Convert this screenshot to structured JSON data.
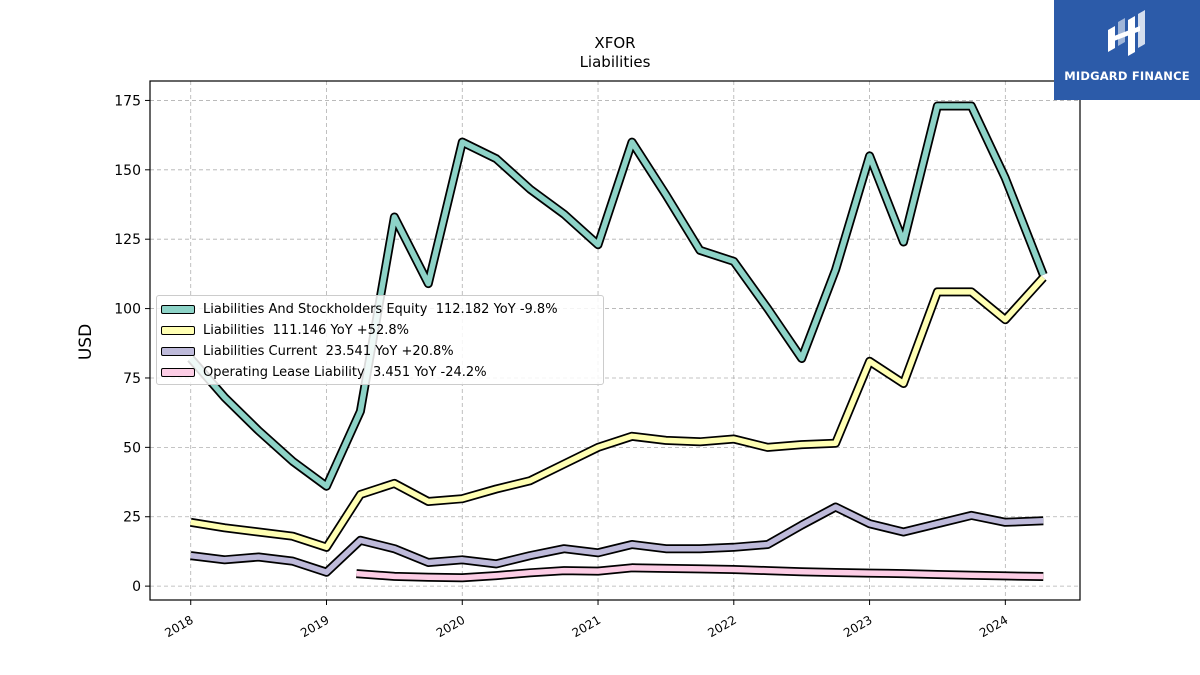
{
  "brand": {
    "name": "MIDGARD FINANCE",
    "color": "#2c5ba9"
  },
  "chart_data": {
    "type": "line",
    "title": "XFOR",
    "subtitle": "Liabilities",
    "ylabel": "USD",
    "xlabel": "",
    "ylim": [
      -5,
      182
    ],
    "xlim": [
      2017.7,
      2024.55
    ],
    "yticks": [
      0,
      25,
      50,
      75,
      100,
      125,
      150,
      175
    ],
    "xticks": [
      "2018",
      "2019",
      "2020",
      "2021",
      "2022",
      "2023",
      "2024"
    ],
    "grid": true,
    "legend_position": "center-left",
    "series": [
      {
        "name": "Liabilities And Stockholders Equity",
        "legend": "Liabilities And Stockholders Equity  112.182 YoY -9.8%",
        "color": "#8dd3c7",
        "points": [
          [
            2018.0,
            82
          ],
          [
            2018.25,
            68
          ],
          [
            2018.5,
            56
          ],
          [
            2018.75,
            45
          ],
          [
            2019.0,
            36
          ],
          [
            2019.25,
            63
          ],
          [
            2019.5,
            133
          ],
          [
            2019.75,
            109
          ],
          [
            2020.0,
            160
          ],
          [
            2020.25,
            154
          ],
          [
            2020.5,
            143
          ],
          [
            2020.75,
            134
          ],
          [
            2021.0,
            123
          ],
          [
            2021.25,
            160
          ],
          [
            2021.5,
            141
          ],
          [
            2021.75,
            121
          ],
          [
            2022.0,
            117
          ],
          [
            2022.25,
            100
          ],
          [
            2022.5,
            82
          ],
          [
            2022.75,
            114
          ],
          [
            2023.0,
            155
          ],
          [
            2023.25,
            124
          ],
          [
            2023.5,
            173
          ],
          [
            2023.75,
            173
          ],
          [
            2024.0,
            147
          ],
          [
            2024.28,
            112.182
          ]
        ]
      },
      {
        "name": "Liabilities",
        "legend": "Liabilities  111.146 YoY +52.8%",
        "color": "#ffffb3",
        "points": [
          [
            2018.0,
            23
          ],
          [
            2018.25,
            21
          ],
          [
            2018.5,
            19.5
          ],
          [
            2018.75,
            18
          ],
          [
            2019.0,
            14
          ],
          [
            2019.25,
            33
          ],
          [
            2019.5,
            37
          ],
          [
            2019.75,
            30.5
          ],
          [
            2020.0,
            31.5
          ],
          [
            2020.25,
            35
          ],
          [
            2020.5,
            38
          ],
          [
            2020.75,
            44
          ],
          [
            2021.0,
            50
          ],
          [
            2021.25,
            54
          ],
          [
            2021.5,
            52.5
          ],
          [
            2021.75,
            52
          ],
          [
            2022.0,
            53
          ],
          [
            2022.25,
            50
          ],
          [
            2022.5,
            51
          ],
          [
            2022.75,
            51.5
          ],
          [
            2023.0,
            81
          ],
          [
            2023.25,
            73
          ],
          [
            2023.5,
            106
          ],
          [
            2023.75,
            106
          ],
          [
            2024.0,
            96
          ],
          [
            2024.28,
            111.146
          ]
        ]
      },
      {
        "name": "Liabilities Current",
        "legend": "Liabilities Current  23.541 YoY +20.8%",
        "color": "#bebada",
        "points": [
          [
            2018.0,
            11
          ],
          [
            2018.25,
            9.5
          ],
          [
            2018.5,
            10.5
          ],
          [
            2018.75,
            9
          ],
          [
            2019.0,
            5
          ],
          [
            2019.25,
            16.5
          ],
          [
            2019.5,
            13.5
          ],
          [
            2019.75,
            8.5
          ],
          [
            2020.0,
            9.5
          ],
          [
            2020.25,
            8
          ],
          [
            2020.5,
            11
          ],
          [
            2020.75,
            13.5
          ],
          [
            2021.0,
            12
          ],
          [
            2021.25,
            15
          ],
          [
            2021.5,
            13.5
          ],
          [
            2021.75,
            13.5
          ],
          [
            2022.0,
            14
          ],
          [
            2022.25,
            15
          ],
          [
            2022.5,
            22
          ],
          [
            2022.75,
            28.5
          ],
          [
            2023.0,
            22.5
          ],
          [
            2023.25,
            19.5
          ],
          [
            2023.5,
            22.5
          ],
          [
            2023.75,
            25.5
          ],
          [
            2024.0,
            23
          ],
          [
            2024.28,
            23.541
          ]
        ]
      },
      {
        "name": "Operating Lease Liability",
        "legend": "Operating Lease Liability  3.451 YoY -24.2%",
        "color": "#fccde5",
        "points": [
          [
            2019.22,
            4.5
          ],
          [
            2019.5,
            3.5
          ],
          [
            2019.75,
            3.2
          ],
          [
            2020.0,
            3.0
          ],
          [
            2020.25,
            3.8
          ],
          [
            2020.5,
            4.8
          ],
          [
            2020.75,
            5.6
          ],
          [
            2021.0,
            5.4
          ],
          [
            2021.25,
            6.6
          ],
          [
            2021.5,
            6.4
          ],
          [
            2021.75,
            6.2
          ],
          [
            2022.0,
            6.0
          ],
          [
            2022.25,
            5.6
          ],
          [
            2022.5,
            5.2
          ],
          [
            2022.75,
            4.9
          ],
          [
            2023.0,
            4.7
          ],
          [
            2023.25,
            4.5
          ],
          [
            2023.5,
            4.2
          ],
          [
            2023.75,
            3.9
          ],
          [
            2024.0,
            3.7
          ],
          [
            2024.28,
            3.451
          ]
        ]
      }
    ]
  }
}
